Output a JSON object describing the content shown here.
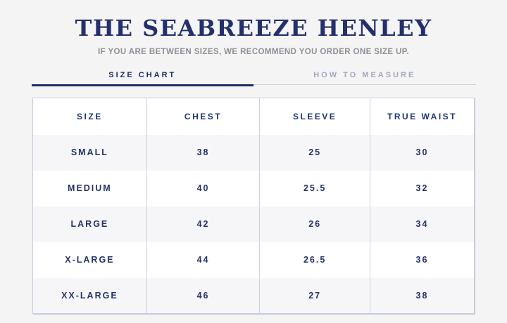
{
  "header": {
    "title": "THE SEABREEZE HENLEY",
    "subtitle": "IF YOU ARE BETWEEN SIZES, WE RECOMMEND YOU ORDER ONE SIZE UP."
  },
  "tabs": [
    {
      "label": "SIZE CHART",
      "active": true
    },
    {
      "label": "HOW TO MEASURE",
      "active": false
    }
  ],
  "size_chart": {
    "columns": [
      "SIZE",
      "CHEST",
      "SLEEVE",
      "TRUE WAIST"
    ],
    "rows": [
      [
        "SMALL",
        "38",
        "25",
        "30"
      ],
      [
        "MEDIUM",
        "40",
        "25.5",
        "32"
      ],
      [
        "LARGE",
        "42",
        "26",
        "34"
      ],
      [
        "X-LARGE",
        "44",
        "26.5",
        "36"
      ],
      [
        "XX-LARGE",
        "46",
        "27",
        "38"
      ]
    ]
  },
  "colors": {
    "page_background": "#f4f4f5",
    "title_navy": "#24306b",
    "subtitle_gray": "#8e8f94",
    "active_tab_navy": "#1d2c60",
    "inactive_tab_gray": "#a2a8bc",
    "table_border": "#c6cbdb",
    "row_stripe": "#f6f6f8",
    "cell_text_navy": "#263268"
  }
}
